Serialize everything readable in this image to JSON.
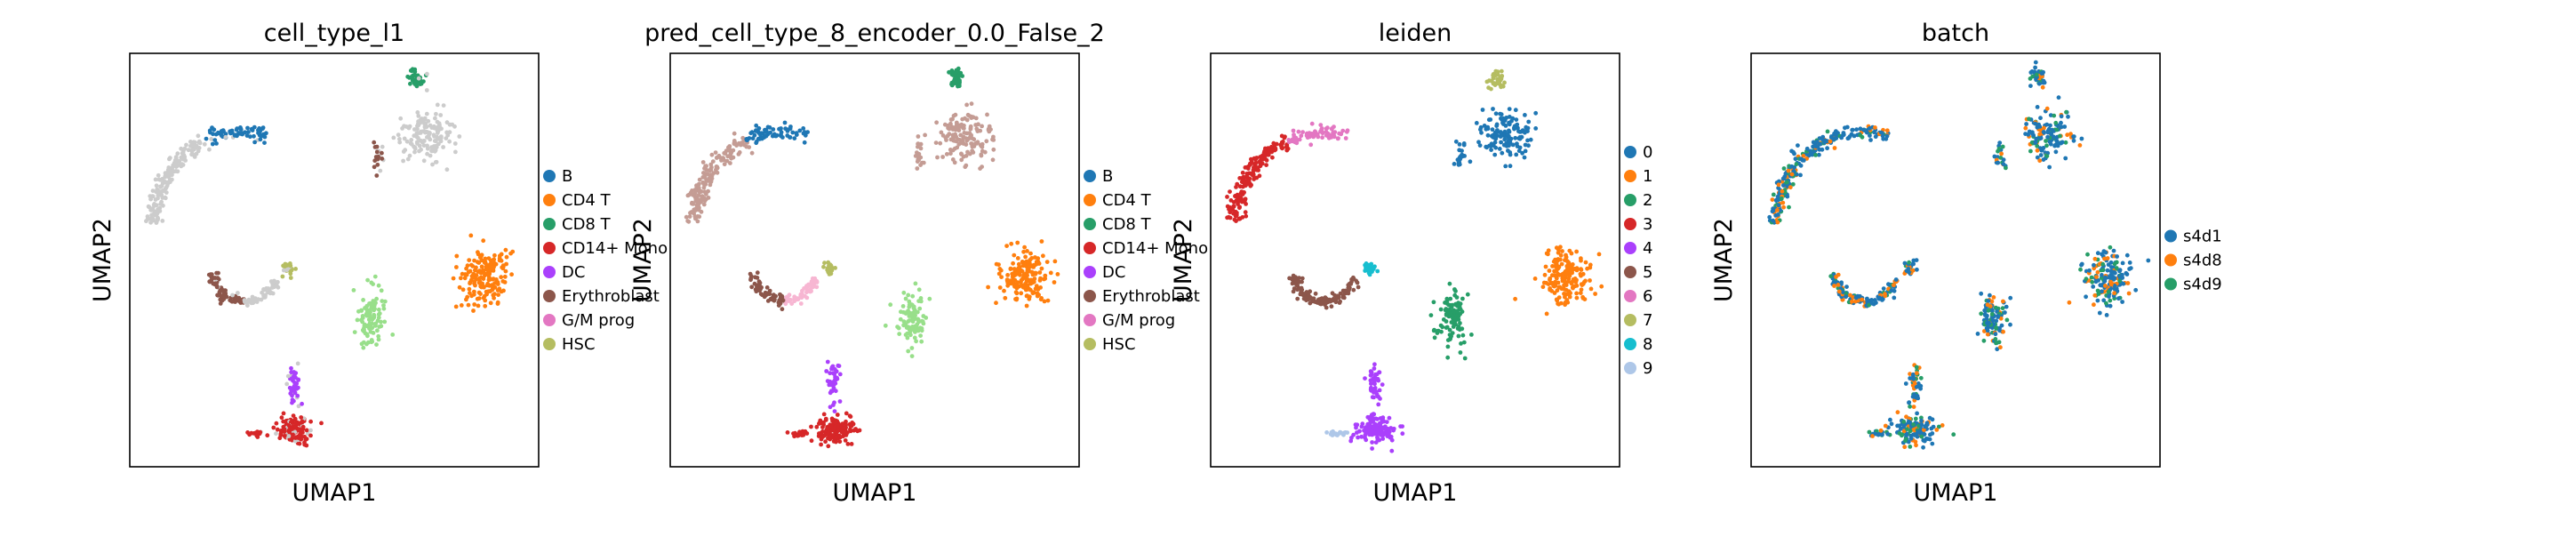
{
  "chart_data": [
    {
      "type": "scatter",
      "title": "cell_type_l1",
      "xlabel": "UMAP1",
      "ylabel": "UMAP2",
      "grid": false,
      "legend_position": "right",
      "legend": [
        {
          "label": "B",
          "color": "#1f77b4"
        },
        {
          "label": "CD4 T",
          "color": "#ff7f0e"
        },
        {
          "label": "CD8 T",
          "color": "#279e68"
        },
        {
          "label": "CD14+ Mono",
          "color": "#d62728"
        },
        {
          "label": "DC",
          "color": "#aa40fc"
        },
        {
          "label": "Erythroblast",
          "color": "#8c564b"
        },
        {
          "label": "G/M prog",
          "color": "#e377c2"
        },
        {
          "label": "HSC",
          "color": "#b5bd61"
        }
      ]
    },
    {
      "type": "scatter",
      "title": "pred_cell_type_8_encoder_0.0_False_2",
      "xlabel": "UMAP1",
      "ylabel": "UMAP2",
      "grid": false,
      "legend_position": "right",
      "legend": [
        {
          "label": "B",
          "color": "#1f77b4"
        },
        {
          "label": "CD4 T",
          "color": "#ff7f0e"
        },
        {
          "label": "CD8 T",
          "color": "#279e68"
        },
        {
          "label": "CD14+ Mono",
          "color": "#d62728"
        },
        {
          "label": "DC",
          "color": "#aa40fc"
        },
        {
          "label": "Erythroblast",
          "color": "#8c564b"
        },
        {
          "label": "G/M prog",
          "color": "#e377c2"
        },
        {
          "label": "HSC",
          "color": "#b5bd61"
        }
      ]
    },
    {
      "type": "scatter",
      "title": "leiden",
      "xlabel": "UMAP1",
      "ylabel": "UMAP2",
      "grid": false,
      "legend_position": "right",
      "legend": [
        {
          "label": "0",
          "color": "#1f77b4"
        },
        {
          "label": "1",
          "color": "#ff7f0e"
        },
        {
          "label": "2",
          "color": "#279e68"
        },
        {
          "label": "3",
          "color": "#d62728"
        },
        {
          "label": "4",
          "color": "#aa40fc"
        },
        {
          "label": "5",
          "color": "#8c564b"
        },
        {
          "label": "6",
          "color": "#e377c2"
        },
        {
          "label": "7",
          "color": "#b5bd61"
        },
        {
          "label": "8",
          "color": "#17becf"
        },
        {
          "label": "9",
          "color": "#aec7e8"
        }
      ]
    },
    {
      "type": "scatter",
      "title": "batch",
      "xlabel": "UMAP1",
      "ylabel": "UMAP2",
      "grid": false,
      "legend_position": "right",
      "legend": [
        {
          "label": "s4d1",
          "color": "#1f77b4"
        },
        {
          "label": "s4d8",
          "color": "#ff7f0e"
        },
        {
          "label": "s4d9",
          "color": "#279e68"
        }
      ]
    }
  ]
}
